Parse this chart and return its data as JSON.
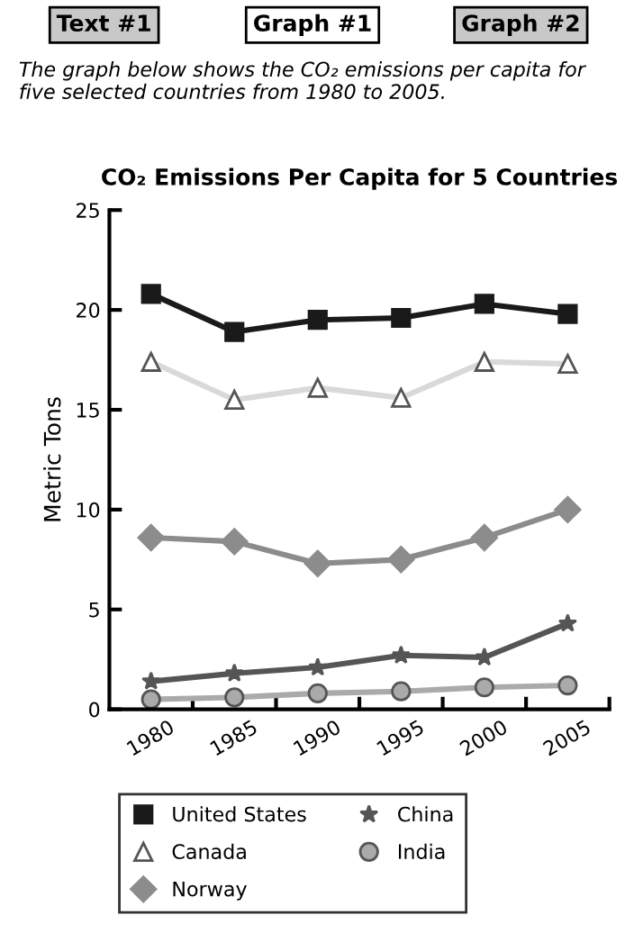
{
  "chart_data": {
    "type": "line",
    "title": "CO₂ Emissions Per Capita for 5 Countries",
    "ylabel": "Metric Tons",
    "annotations": [
      "Text #1",
      "Graph #1",
      "Graph #2",
      "The graph below shows the CO₂ emissions per capita for five selected countries from 1980 to 2005."
    ],
    "x": [
      1980,
      1985,
      1990,
      1995,
      2000,
      2005
    ],
    "series": [
      {
        "name": "United States",
        "color": "#1a1a1a",
        "marker": "square",
        "values": [
          20.8,
          18.9,
          19.5,
          19.6,
          20.3,
          19.8
        ]
      },
      {
        "name": "Canada",
        "color": "#d9d9d9",
        "marker": "triangle",
        "values": [
          17.4,
          15.5,
          16.1,
          15.6,
          17.4,
          17.3
        ]
      },
      {
        "name": "Norway",
        "color": "#8c8c8c",
        "marker": "diamond",
        "values": [
          8.6,
          8.4,
          7.3,
          7.5,
          8.6,
          10.0
        ]
      },
      {
        "name": "China",
        "color": "#555555",
        "marker": "star",
        "values": [
          1.4,
          1.8,
          2.1,
          2.7,
          2.6,
          4.3
        ]
      },
      {
        "name": "India",
        "color": "#aaaaaa",
        "marker": "circle",
        "values": [
          0.5,
          0.6,
          0.8,
          0.9,
          1.1,
          1.2
        ]
      }
    ],
    "xlim": [
      1977.5,
      2007.5
    ],
    "xticks": [
      {
        "value": 1980,
        "label": "1980"
      },
      {
        "value": 1982.5,
        "label": null
      },
      {
        "value": 1985,
        "label": "1985"
      },
      {
        "value": 1987.5,
        "label": null
      },
      {
        "value": 1990,
        "label": "1990"
      },
      {
        "value": 1992.5,
        "label": null
      },
      {
        "value": 1995,
        "label": "1995"
      },
      {
        "value": 1997.5,
        "label": null
      },
      {
        "value": 2000,
        "label": "2000"
      },
      {
        "value": 2002.5,
        "label": null
      },
      {
        "value": 2005,
        "label": "2005"
      },
      {
        "value": 2007.5,
        "label": null
      }
    ],
    "ylim": [
      0,
      25
    ],
    "yticks": [
      0,
      5,
      10,
      15,
      20,
      25
    ],
    "grid": false,
    "legend": "bottom",
    "line_style": "solid"
  }
}
